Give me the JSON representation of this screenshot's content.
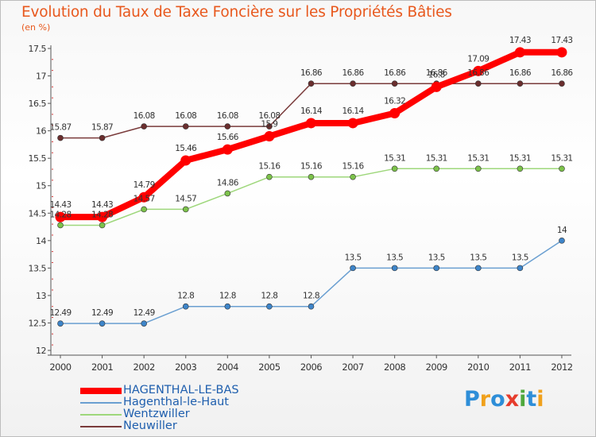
{
  "title": "Evolution du Taux de Taxe Foncière sur les Propriétés Bâties",
  "unit_label": "(en %)",
  "logo": {
    "text": "Proxiti",
    "letter_colors": [
      "#2e8ed8",
      "#f0a11c",
      "#2e8ed8",
      "#e63c2d",
      "#4fa83d",
      "#2e8ed8",
      "#f0a11c"
    ]
  },
  "colors": {
    "title": "#e8581d",
    "axis": "#555555",
    "grid_marker": "#d33a3a"
  },
  "chart_data": {
    "type": "line",
    "x": [
      "2000",
      "2001",
      "2002",
      "2003",
      "2004",
      "2005",
      "2006",
      "2007",
      "2008",
      "2009",
      "2010",
      "2011",
      "2012"
    ],
    "ylim": [
      12,
      17.5
    ],
    "yticks": [
      "12",
      "12.5",
      "13",
      "13.5",
      "14",
      "14.5",
      "15",
      "15.5",
      "16",
      "16.5",
      "17",
      "17.5"
    ],
    "grid": false,
    "legend_position": "bottom-left",
    "series": [
      {
        "name": "HAGENTHAL-LE-BAS",
        "color": "#ff0000",
        "width": 8,
        "marker": 6.5,
        "values": [
          14.43,
          14.43,
          14.79,
          15.46,
          15.66,
          15.9,
          16.14,
          16.14,
          16.32,
          16.8,
          17.09,
          17.43,
          17.43
        ],
        "labels": [
          "14.43",
          "14.43",
          "14.79",
          "15.46",
          "15.66",
          "15.9",
          "16.14",
          "16.14",
          "16.32",
          "16.8",
          "17.09",
          "17.43",
          "17.43"
        ]
      },
      {
        "name": "Hagenthal-le-Haut",
        "color": "#6a9fd1",
        "width": 1.5,
        "marker": 3.5,
        "marker_color": "#3e85c9",
        "values": [
          12.49,
          12.49,
          12.49,
          12.8,
          12.8,
          12.8,
          12.8,
          13.5,
          13.5,
          13.5,
          13.5,
          13.5,
          14
        ],
        "labels": [
          "12.49",
          "12.49",
          "12.49",
          "12.8",
          "12.8",
          "12.8",
          "12.8",
          "13.5",
          "13.5",
          "13.5",
          "13.5",
          "13.5",
          "14"
        ]
      },
      {
        "name": "Wentzwiller",
        "color": "#9ed77b",
        "width": 1.5,
        "marker": 3.5,
        "marker_color": "#7cc24a",
        "values": [
          14.28,
          14.28,
          14.57,
          14.57,
          14.86,
          15.16,
          15.16,
          15.16,
          15.31,
          15.31,
          15.31,
          15.31,
          15.31
        ],
        "labels": [
          "14.28",
          "14.28",
          "14.57",
          "14.57",
          "14.86",
          "15.16",
          "15.16",
          "15.16",
          "15.31",
          "15.31",
          "15.31",
          "15.31",
          "15.31"
        ]
      },
      {
        "name": "Neuwiller",
        "color": "#7a3b3b",
        "width": 1.5,
        "marker": 3.5,
        "marker_color": "#6a2e2e",
        "values": [
          15.87,
          15.87,
          16.08,
          16.08,
          16.08,
          16.08,
          16.86,
          16.86,
          16.86,
          16.86,
          16.86,
          16.86,
          16.86
        ],
        "labels": [
          "15.87",
          "15.87",
          "16.08",
          "16.08",
          "16.08",
          "16.08",
          "16.86",
          "16.86",
          "16.86",
          "16.86",
          "16.86",
          "16.86",
          "16.86"
        ]
      }
    ]
  }
}
